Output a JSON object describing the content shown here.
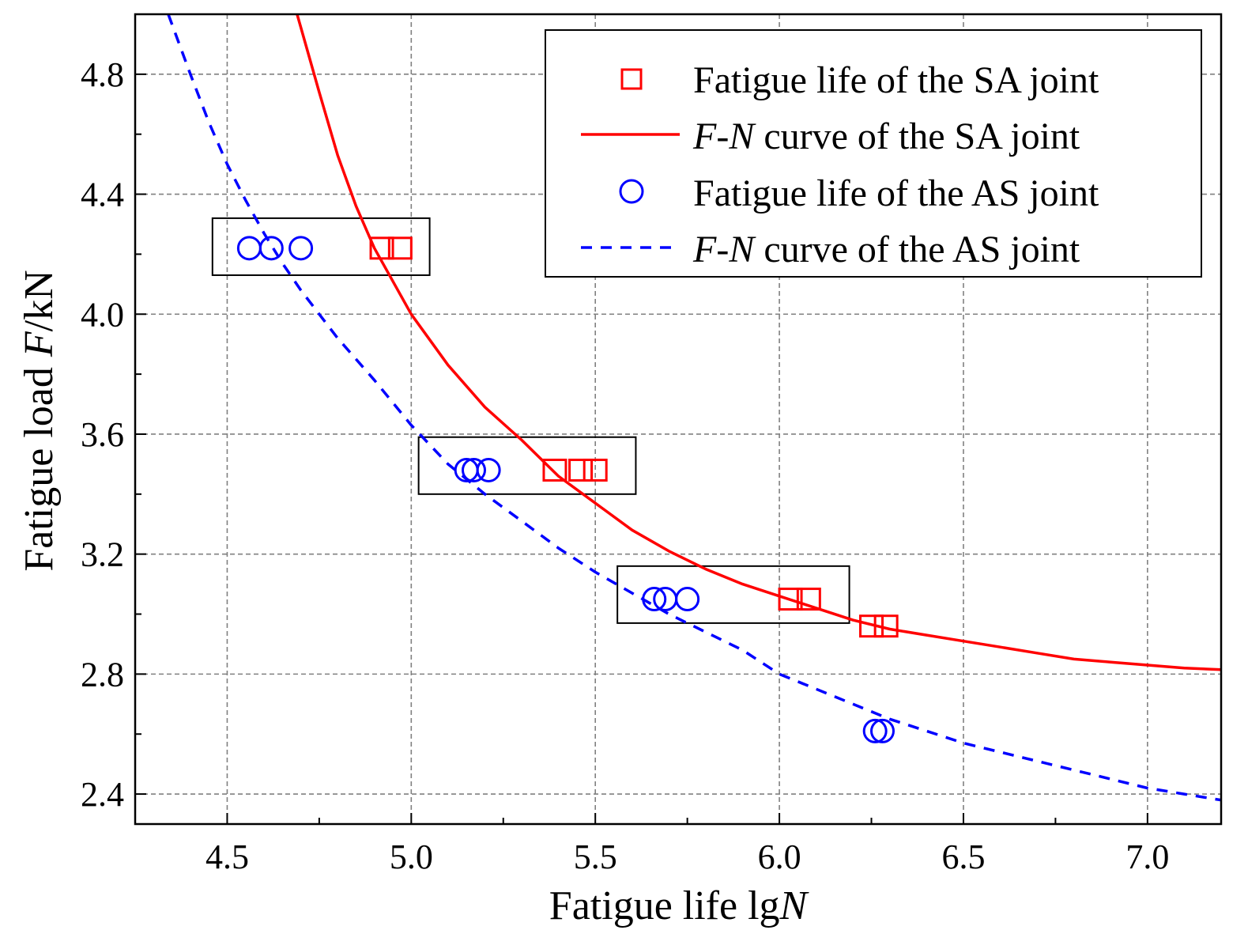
{
  "chart_data": {
    "type": "scatter",
    "xlabel": {
      "text": "Fatigue life lg",
      "var": "N"
    },
    "ylabel": {
      "text": "Fatigue load ",
      "var": "F",
      "unit": "/kN"
    },
    "xlim": [
      4.25,
      7.2
    ],
    "ylim": [
      2.3,
      5.0
    ],
    "grid": true,
    "xticks": [
      {
        "value": 4.5,
        "label": "4.5"
      },
      {
        "value": 5.0,
        "label": "5.0"
      },
      {
        "value": 5.5,
        "label": "5.5"
      },
      {
        "value": 6.0,
        "label": "6.0"
      },
      {
        "value": 6.5,
        "label": "6.5"
      },
      {
        "value": 7.0,
        "label": "7.0"
      }
    ],
    "yticks": [
      {
        "value": 2.4,
        "label": "2.4"
      },
      {
        "value": 2.8,
        "label": "2.8"
      },
      {
        "value": 3.2,
        "label": "3.2"
      },
      {
        "value": 3.6,
        "label": "3.6"
      },
      {
        "value": 4.0,
        "label": "4.0"
      },
      {
        "value": 4.4,
        "label": "4.4"
      },
      {
        "value": 4.8,
        "label": "4.8"
      }
    ],
    "legend_position": "top-right",
    "series": [
      {
        "name": "Fatigue life of the SA joint",
        "kind": "scatter",
        "marker": "square",
        "color": "#ff0000",
        "points": [
          [
            4.92,
            4.22
          ],
          [
            4.97,
            4.22
          ],
          [
            5.39,
            3.48
          ],
          [
            5.46,
            3.48
          ],
          [
            5.5,
            3.48
          ],
          [
            6.03,
            3.05
          ],
          [
            6.08,
            3.05
          ],
          [
            6.25,
            2.96
          ],
          [
            6.29,
            2.96
          ]
        ]
      },
      {
        "name_var": "F",
        "name_sep": "-",
        "name_var2": "N",
        "name": " curve of the SA joint",
        "kind": "line",
        "style": "solid",
        "color": "#ff0000",
        "points": [
          [
            4.69,
            5.0
          ],
          [
            4.75,
            4.74
          ],
          [
            4.8,
            4.53
          ],
          [
            4.85,
            4.36
          ],
          [
            4.9,
            4.22
          ],
          [
            5.0,
            4.0
          ],
          [
            5.1,
            3.83
          ],
          [
            5.2,
            3.69
          ],
          [
            5.3,
            3.58
          ],
          [
            5.4,
            3.46
          ],
          [
            5.5,
            3.37
          ],
          [
            5.6,
            3.28
          ],
          [
            5.7,
            3.21
          ],
          [
            5.8,
            3.15
          ],
          [
            5.9,
            3.1
          ],
          [
            6.0,
            3.06
          ],
          [
            6.1,
            3.02
          ],
          [
            6.2,
            2.98
          ],
          [
            6.3,
            2.95
          ],
          [
            6.4,
            2.93
          ],
          [
            6.5,
            2.91
          ],
          [
            6.6,
            2.89
          ],
          [
            6.7,
            2.87
          ],
          [
            6.8,
            2.85
          ],
          [
            6.9,
            2.84
          ],
          [
            7.0,
            2.83
          ],
          [
            7.1,
            2.82
          ],
          [
            7.2,
            2.815
          ]
        ]
      },
      {
        "name": "Fatigue life of the AS joint",
        "kind": "scatter",
        "marker": "circle",
        "color": "#0000ff",
        "points": [
          [
            4.56,
            4.22
          ],
          [
            4.62,
            4.22
          ],
          [
            4.7,
            4.22
          ],
          [
            5.15,
            3.48
          ],
          [
            5.17,
            3.48
          ],
          [
            5.21,
            3.48
          ],
          [
            5.66,
            3.05
          ],
          [
            5.69,
            3.05
          ],
          [
            5.75,
            3.05
          ],
          [
            6.26,
            2.61
          ],
          [
            6.28,
            2.61
          ]
        ]
      },
      {
        "name_var": "F",
        "name_sep": "-",
        "name_var2": "N",
        "name": " curve of the AS joint",
        "kind": "line",
        "style": "dashed",
        "color": "#0000ff",
        "points": [
          [
            4.34,
            5.0
          ],
          [
            4.4,
            4.8
          ],
          [
            4.45,
            4.64
          ],
          [
            4.5,
            4.5
          ],
          [
            4.55,
            4.38
          ],
          [
            4.6,
            4.27
          ],
          [
            4.65,
            4.17
          ],
          [
            4.7,
            4.08
          ],
          [
            4.75,
            4.0
          ],
          [
            4.8,
            3.92
          ],
          [
            4.9,
            3.78
          ],
          [
            5.0,
            3.63
          ],
          [
            5.1,
            3.5
          ],
          [
            5.2,
            3.4
          ],
          [
            5.3,
            3.31
          ],
          [
            5.4,
            3.22
          ],
          [
            5.5,
            3.14
          ],
          [
            5.6,
            3.07
          ],
          [
            5.7,
            3.0
          ],
          [
            5.8,
            2.94
          ],
          [
            5.9,
            2.88
          ],
          [
            6.0,
            2.8
          ],
          [
            6.1,
            2.75
          ],
          [
            6.2,
            2.7
          ],
          [
            6.3,
            2.65
          ],
          [
            6.4,
            2.61
          ],
          [
            6.5,
            2.57
          ],
          [
            6.6,
            2.54
          ],
          [
            6.7,
            2.51
          ],
          [
            6.8,
            2.48
          ],
          [
            6.9,
            2.45
          ],
          [
            7.0,
            2.42
          ],
          [
            7.1,
            2.4
          ],
          [
            7.2,
            2.38
          ]
        ]
      }
    ],
    "groups": [
      {
        "x0": 4.46,
        "x1": 5.05,
        "y0": 4.13,
        "y1": 4.32
      },
      {
        "x0": 5.02,
        "x1": 5.61,
        "y0": 3.4,
        "y1": 3.59
      },
      {
        "x0": 5.56,
        "x1": 6.19,
        "y0": 2.97,
        "y1": 3.16
      }
    ]
  }
}
